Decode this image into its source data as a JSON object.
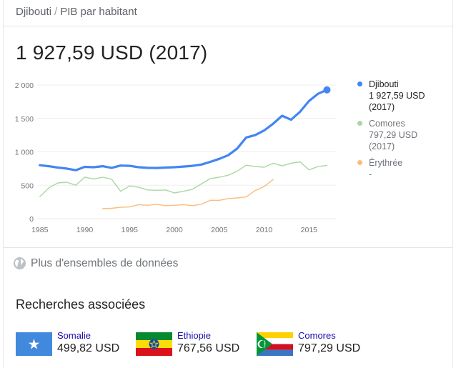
{
  "breadcrumb": {
    "country": "Djibouti",
    "separator": "/",
    "indicator": "PIB par habitant"
  },
  "headline": "1 927,59 USD (2017)",
  "chart_data": {
    "type": "line",
    "xlim": [
      1984.7,
      2018
    ],
    "ylim": [
      0,
      2000
    ],
    "yticks": [
      0,
      500,
      1000,
      1500,
      2000
    ],
    "ytick_labels": [
      "0",
      "500",
      "1 000",
      "1 500",
      "2 000"
    ],
    "xticks": [
      1985,
      1990,
      1995,
      2000,
      2005,
      2010,
      2015
    ],
    "xtick_labels": [
      "1985",
      "1990",
      "1995",
      "2000",
      "2005",
      "2010",
      "2015"
    ],
    "grid": true,
    "legend_position": "right",
    "series": [
      {
        "name": "Djibouti",
        "legend_value": "1 927,59 USD",
        "legend_year": "(2017)",
        "color": "#4285f4",
        "emphasis": true,
        "x": [
          1985,
          1986,
          1987,
          1988,
          1989,
          1990,
          1991,
          1992,
          1993,
          1994,
          1995,
          1996,
          1997,
          1998,
          1999,
          2000,
          2001,
          2002,
          2003,
          2004,
          2005,
          2006,
          2007,
          2008,
          2009,
          2010,
          2011,
          2012,
          2013,
          2014,
          2015,
          2016,
          2017
        ],
        "y": [
          800,
          785,
          765,
          750,
          725,
          775,
          770,
          785,
          760,
          795,
          790,
          770,
          760,
          758,
          765,
          770,
          780,
          790,
          810,
          850,
          895,
          950,
          1050,
          1215,
          1250,
          1320,
          1420,
          1540,
          1480,
          1600,
          1760,
          1870,
          1927.59
        ]
      },
      {
        "name": "Comores",
        "legend_value": "797,29 USD",
        "legend_year": "(2017)",
        "color": "#a8d8a0",
        "emphasis": false,
        "x": [
          1985,
          1986,
          1987,
          1988,
          1989,
          1990,
          1991,
          1992,
          1993,
          1994,
          1995,
          1996,
          1997,
          1998,
          1999,
          2000,
          2001,
          2002,
          2003,
          2004,
          2005,
          2006,
          2007,
          2008,
          2009,
          2010,
          2011,
          2012,
          2013,
          2014,
          2015,
          2016,
          2017
        ],
        "y": [
          330,
          460,
          535,
          545,
          500,
          620,
          595,
          620,
          590,
          410,
          490,
          470,
          430,
          425,
          430,
          385,
          410,
          440,
          520,
          600,
          620,
          650,
          710,
          800,
          780,
          770,
          830,
          790,
          830,
          850,
          730,
          780,
          797.29
        ]
      },
      {
        "name": "Érythrée",
        "legend_value": "-",
        "legend_year": "",
        "color": "#fbbc7c",
        "emphasis": false,
        "x": [
          1992,
          1993,
          1994,
          1995,
          1996,
          1997,
          1998,
          1999,
          2000,
          2001,
          2002,
          2003,
          2004,
          2005,
          2006,
          2007,
          2008,
          2009,
          2010,
          2011
        ],
        "y": [
          150,
          155,
          170,
          175,
          210,
          200,
          215,
          195,
          200,
          210,
          195,
          215,
          275,
          275,
          300,
          310,
          325,
          420,
          480,
          585
        ]
      }
    ]
  },
  "more_data_label": "Plus d'ensembles de données",
  "related": {
    "title": "Recherches associées",
    "items": [
      {
        "name": "Somalie",
        "value": "499,82 USD",
        "flag_icon": "somalia-flag-icon"
      },
      {
        "name": "Ethiopie",
        "value": "767,56 USD",
        "flag_icon": "ethiopia-flag-icon"
      },
      {
        "name": "Comores",
        "value": "797,29 USD",
        "flag_icon": "comoros-flag-icon"
      }
    ]
  },
  "colors": {
    "link": "#1a0dab",
    "muted": "#70757a",
    "divider": "#e6e6e6",
    "grid": "#ededed"
  }
}
